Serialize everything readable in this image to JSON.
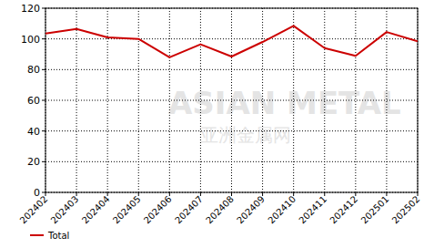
{
  "chart_data": {
    "type": "line",
    "categories": [
      "202402",
      "202403",
      "202404",
      "202405",
      "202406",
      "202407",
      "202408",
      "202409",
      "202410",
      "202411",
      "202412",
      "202501",
      "202502"
    ],
    "series": [
      {
        "name": "Total",
        "color": "#cc0000",
        "values": [
          103.5,
          106.5,
          101,
          100,
          88,
          96.5,
          88.5,
          98,
          108.5,
          94,
          89,
          104.5,
          98.5
        ]
      }
    ],
    "ylim": [
      0,
      120
    ],
    "yticks": [
      0,
      20,
      40,
      60,
      80,
      100,
      120
    ],
    "grid": true,
    "legend": "bottom-left",
    "annotations": [
      "ASIAN METAL",
      "亚洲金属网"
    ]
  }
}
